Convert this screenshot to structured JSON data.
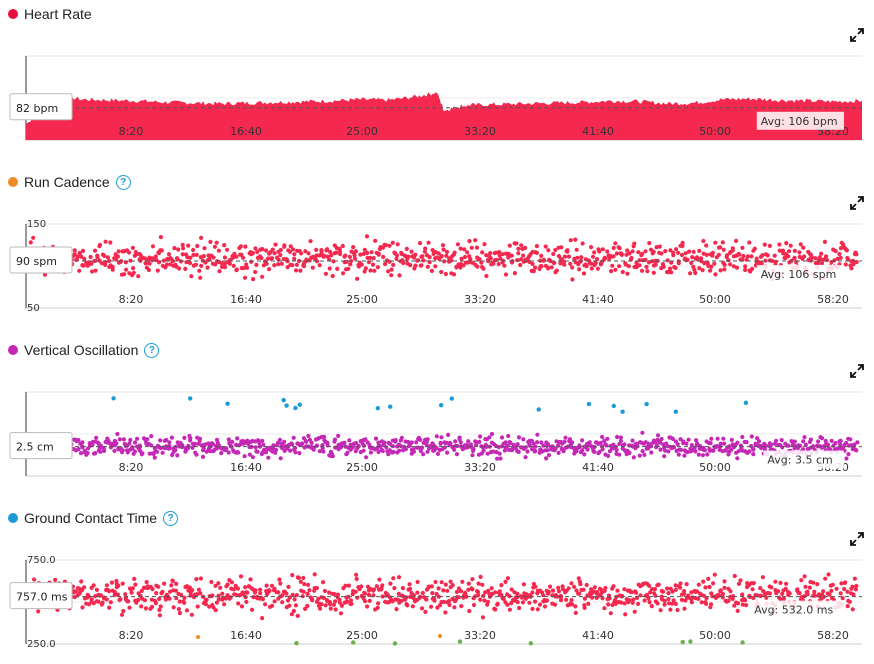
{
  "chart_data": [
    {
      "type": "area",
      "title": "Heart Rate",
      "color": "#f5284f",
      "x_ticks": [
        "8:20",
        "16:40",
        "25:00",
        "33:20",
        "41:40",
        "50:00",
        "58:20"
      ],
      "current_label": "82 bpm",
      "avg_label": "Avg: 106 bpm",
      "avg_value": 106,
      "ylim": [
        60,
        180
      ],
      "series": [
        {
          "x": [
            0,
            2,
            4,
            6,
            8,
            10,
            12,
            14,
            16,
            18,
            20,
            22,
            24,
            26,
            28,
            29.5,
            30,
            31,
            32,
            34,
            36,
            38,
            40,
            42,
            44,
            46,
            48,
            50,
            52,
            54,
            56,
            58,
            60
          ],
          "y": [
            82,
            125,
            118,
            117,
            116,
            114,
            113,
            112,
            113,
            114,
            115,
            116,
            118,
            117,
            122,
            128,
            102,
            108,
            110,
            111,
            112,
            113,
            114,
            116,
            115,
            112,
            113,
            118,
            119,
            117,
            116,
            115,
            116
          ]
        }
      ]
    },
    {
      "type": "scatter",
      "title": "Run Cadence",
      "color": "#f5284f",
      "help": "?",
      "x_ticks": [
        "8:20",
        "16:40",
        "25:00",
        "33:20",
        "41:40",
        "50:00",
        "58:20"
      ],
      "y_top_label": "150",
      "y_bottom_label": "50",
      "ylim": [
        50,
        150
      ],
      "current_label": "90 spm",
      "avg_label": "Avg: 106 spm",
      "avg_value": 106,
      "mean": 108,
      "spread": 12
    },
    {
      "type": "scatter",
      "title": "Vertical Oscillation",
      "color": "#c628b6",
      "secondary_color": "#1a9bd7",
      "help": "?",
      "x_ticks": [
        "8:20",
        "16:40",
        "25:00",
        "33:20",
        "41:40",
        "50:00",
        "58:20"
      ],
      "ylim": [
        0,
        10
      ],
      "current_label": "2.5 cm",
      "avg_label": "Avg: 3.5 cm",
      "avg_value": 3.5,
      "mean": 3.5,
      "spread": 0.7
    },
    {
      "type": "scatter",
      "title": "Ground Contact Time",
      "color": "#f5284f",
      "secondary_color": "#6ab04c",
      "tertiary_color": "#f08a24",
      "help": "?",
      "x_ticks": [
        "8:20",
        "16:40",
        "25:00",
        "33:20",
        "41:40",
        "50:00",
        "58:20"
      ],
      "y_top_label": "750.0",
      "y_bottom_label": "250.0",
      "ylim": [
        250,
        750
      ],
      "current_label": "757.0 ms",
      "avg_label": "Avg: 532.0 ms",
      "avg_value": 532,
      "mean": 540,
      "spread": 60
    }
  ],
  "titles": {
    "hr": "Heart Rate",
    "cad": "Run Cadence",
    "vo": "Vertical Oscillation",
    "gct": "Ground Contact Time"
  },
  "colors": {
    "hr": "#e8113a",
    "cad": "#f08a24",
    "vo": "#c628b6",
    "gct": "#1a9bd7"
  },
  "icons": {
    "expand": "expand-arrows-icon",
    "help": "question-circle-icon"
  }
}
